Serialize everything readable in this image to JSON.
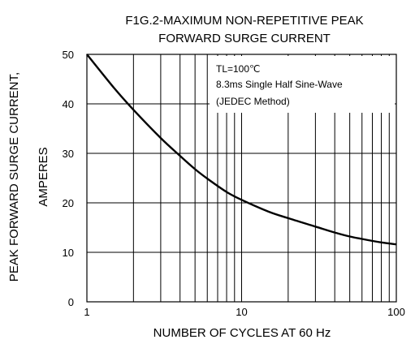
{
  "chart_data": {
    "type": "line",
    "title": [
      "F1G.2-MAXIMUM NON-REPETITIVE PEAK",
      "FORWARD SURGE CURRENT"
    ],
    "xlabel": "NUMBER OF CYCLES AT 60 Hz",
    "ylabel": [
      "PEAK FORWARD SURGE CURRENT,",
      "AMPERES"
    ],
    "x_scale": "log",
    "xlim": [
      1,
      100
    ],
    "ylim": [
      0,
      50
    ],
    "x_ticks": [
      1,
      10,
      100
    ],
    "x_tick_labels": [
      "1",
      "10",
      "100"
    ],
    "y_ticks": [
      0,
      10,
      20,
      30,
      40,
      50
    ],
    "y_tick_labels": [
      "0",
      "10",
      "20",
      "30",
      "40",
      "50"
    ],
    "grid": true,
    "annotation": [
      "TL=100℃",
      "8.3ms Single Half Sine-Wave",
      "(JEDEC Method)"
    ],
    "series": [
      {
        "x": [
          1,
          1.5,
          2,
          3,
          4,
          5,
          6,
          8,
          10,
          15,
          20,
          30,
          40,
          50,
          60,
          80,
          100
        ],
        "y": [
          50,
          43.2,
          38.8,
          33.1,
          29.5,
          26.8,
          24.9,
          22.2,
          20.6,
          18.2,
          16.9,
          15.2,
          14.0,
          13.2,
          12.7,
          12.0,
          11.6
        ]
      }
    ]
  }
}
